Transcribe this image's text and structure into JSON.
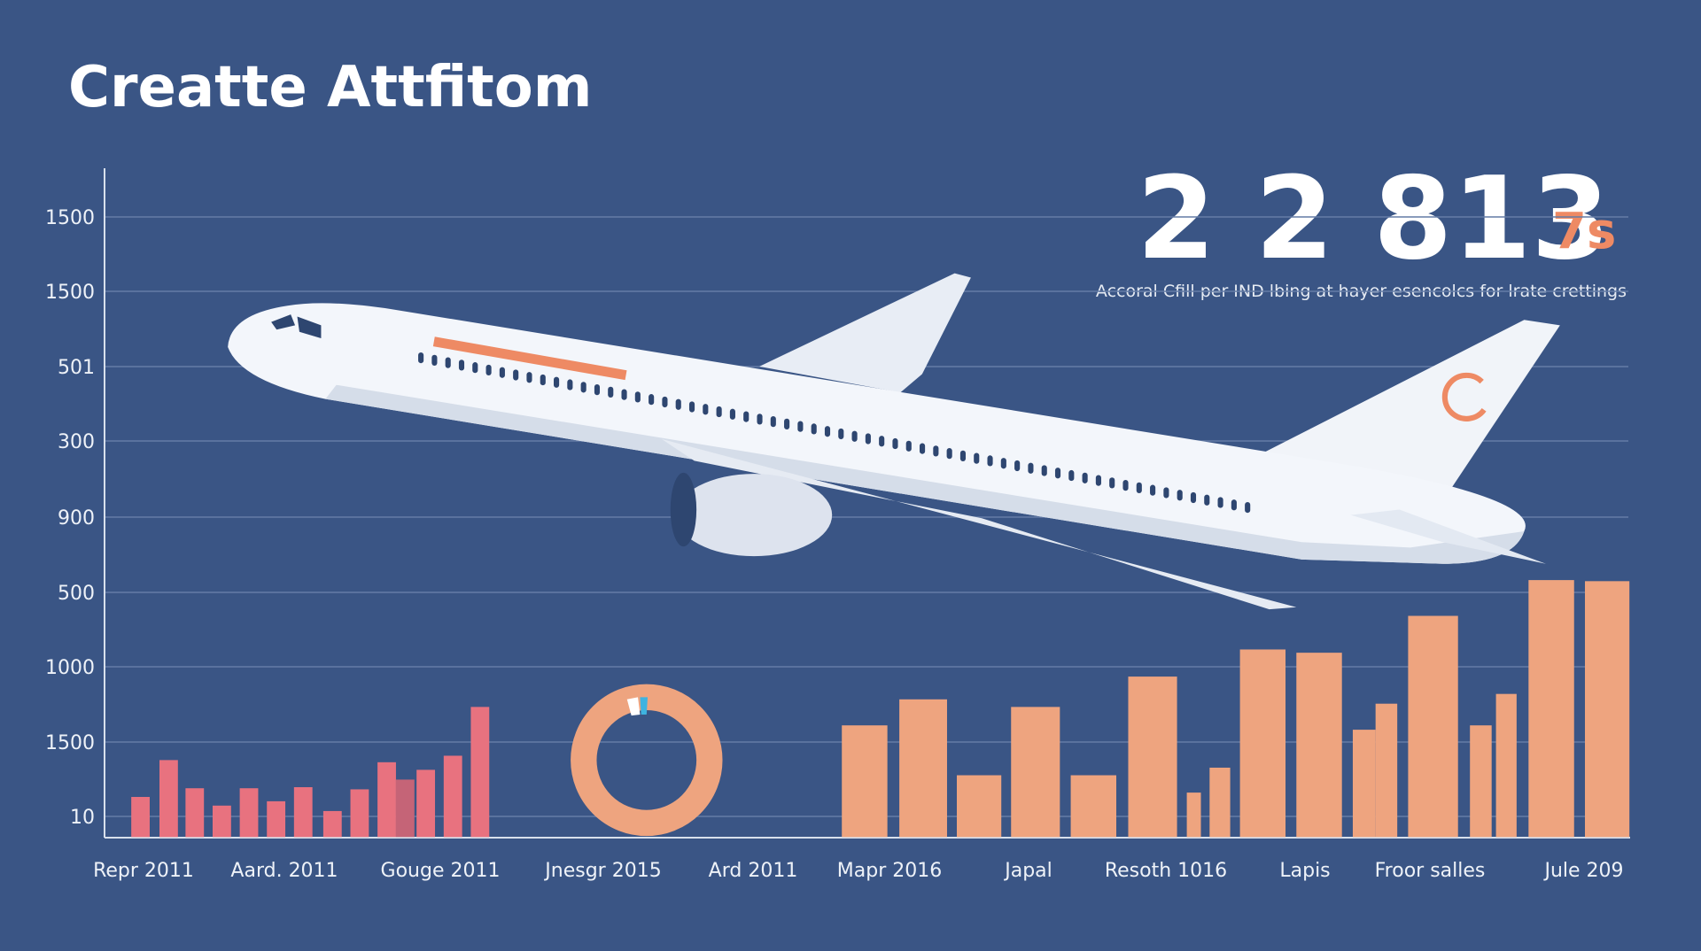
{
  "header": {
    "title": "Creatte Attfitom"
  },
  "stat": {
    "value": "2 2 813",
    "unit": "7s",
    "caption": "Accoral Cfill per IND lbing at hayer esencolcs for lrate crettings"
  },
  "axis": {
    "y_labels": [
      "1500",
      "1500",
      "501",
      "300",
      "900",
      "500",
      "1000",
      "1500",
      "10"
    ],
    "x_labels": [
      "Repr 2011",
      "Aard. 2011",
      "Gouge 2011",
      "Jnesgr 2015",
      "Ard 2011",
      "Mapr 2016",
      "Japal",
      "Resoth 1016",
      "Lapis",
      "Froor salles",
      "Jule 209"
    ]
  }
}
